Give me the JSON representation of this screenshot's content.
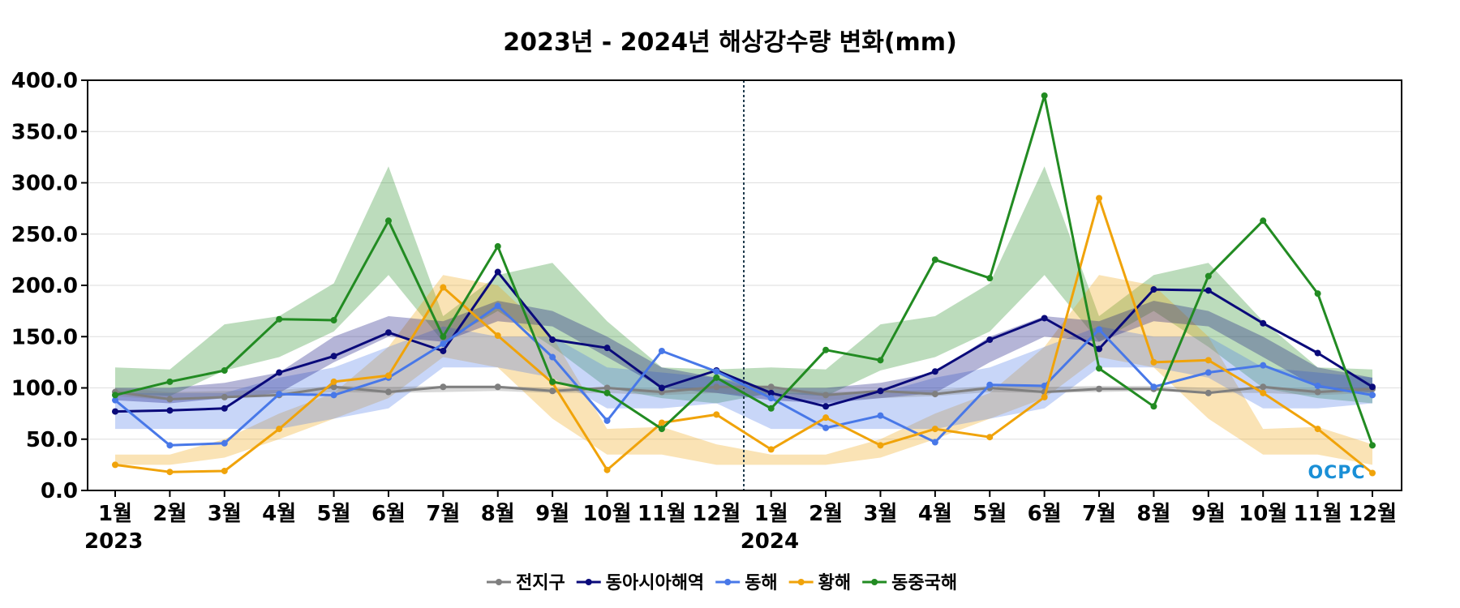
{
  "chart_data": {
    "type": "line",
    "title": "2023년 - 2024년 해상강수량 변화(mm)",
    "xlabel": "",
    "ylabel": "",
    "ylim": [
      0,
      400
    ],
    "y_ticks": [
      "0.0",
      "50.0",
      "100.0",
      "150.0",
      "200.0",
      "250.0",
      "300.0",
      "350.0",
      "400.0"
    ],
    "y_tick_values": [
      0,
      50,
      100,
      150,
      200,
      250,
      300,
      350,
      400
    ],
    "categories": [
      "1월",
      "2월",
      "3월",
      "4월",
      "5월",
      "6월",
      "7월",
      "8월",
      "9월",
      "10월",
      "11월",
      "12월",
      "1월",
      "2월",
      "3월",
      "4월",
      "5월",
      "6월",
      "7월",
      "8월",
      "9월",
      "10월",
      "11월",
      "12월"
    ],
    "year_labels": [
      {
        "label": "2023",
        "index": 0
      },
      {
        "label": "2024",
        "index": 12
      }
    ],
    "divider_after_index": 11,
    "grid": true,
    "legend_position": "bottom",
    "series": [
      {
        "name": "전지구",
        "color": "#7f7f7f",
        "values": [
          96,
          89,
          91,
          93,
          101,
          96,
          101,
          101,
          97,
          100,
          96,
          101,
          101,
          93,
          97,
          94,
          100,
          96,
          99,
          99,
          95,
          101,
          96,
          99
        ]
      },
      {
        "name": "동아시아해역",
        "color": "#0a0a7a",
        "values": [
          77,
          78,
          80,
          115,
          131,
          154,
          136,
          213,
          147,
          139,
          100,
          117,
          95,
          82,
          97,
          116,
          147,
          168,
          138,
          196,
          195,
          163,
          134,
          101
        ]
      },
      {
        "name": "동해",
        "color": "#4878e8",
        "values": [
          88,
          44,
          46,
          94,
          93,
          110,
          143,
          180,
          130,
          68,
          136,
          116,
          90,
          61,
          73,
          47,
          103,
          102,
          157,
          101,
          115,
          122,
          102,
          93
        ]
      },
      {
        "name": "황해",
        "color": "#f0a30a",
        "values": [
          25,
          18,
          19,
          60,
          106,
          112,
          198,
          151,
          105,
          20,
          66,
          74,
          40,
          71,
          44,
          60,
          52,
          91,
          285,
          125,
          127,
          95,
          60,
          17
        ]
      },
      {
        "name": "동중국해",
        "color": "#228b22",
        "values": [
          93,
          106,
          117,
          167,
          166,
          263,
          150,
          238,
          106,
          95,
          60,
          110,
          80,
          137,
          127,
          225,
          207,
          385,
          119,
          82,
          209,
          263,
          192,
          44
        ]
      }
    ],
    "bands": [
      {
        "name": "동중국해",
        "color": "#228b22",
        "lower": [
          95,
          92,
          117,
          130,
          155,
          210,
          145,
          175,
          140,
          100,
          90,
          85
        ],
        "upper": [
          120,
          118,
          162,
          170,
          202,
          316,
          170,
          210,
          222,
          165,
          120,
          118
        ]
      },
      {
        "name": "황해",
        "color": "#f0a30a",
        "lower": [
          25,
          25,
          32,
          50,
          70,
          90,
          130,
          120,
          70,
          35,
          35,
          25
        ],
        "upper": [
          35,
          35,
          50,
          75,
          95,
          140,
          210,
          200,
          150,
          60,
          62,
          45
        ]
      },
      {
        "name": "동해",
        "color": "#4878e8",
        "lower": [
          60,
          60,
          60,
          60,
          70,
          80,
          120,
          120,
          110,
          80,
          80,
          85
        ],
        "upper": [
          95,
          95,
          95,
          110,
          120,
          140,
          160,
          150,
          150,
          120,
          115,
          110
        ]
      },
      {
        "name": "동아시아해역",
        "color": "#0a0a7a",
        "lower": [
          88,
          85,
          90,
          95,
          125,
          150,
          145,
          165,
          160,
          130,
          100,
          95
        ],
        "upper": [
          100,
          100,
          105,
          115,
          150,
          170,
          165,
          185,
          175,
          150,
          120,
          110
        ]
      },
      {
        "name": "전지구",
        "color": "#7f7f7f",
        "lower": [
          92,
          88,
          90,
          92,
          96,
          95,
          96,
          97,
          95,
          95,
          93,
          95
        ],
        "upper": [
          100,
          96,
          97,
          98,
          102,
          101,
          102,
          102,
          100,
          100,
          99,
          101
        ]
      }
    ]
  },
  "logo": {
    "text": "OCPC",
    "color": "#1a8fd6"
  }
}
